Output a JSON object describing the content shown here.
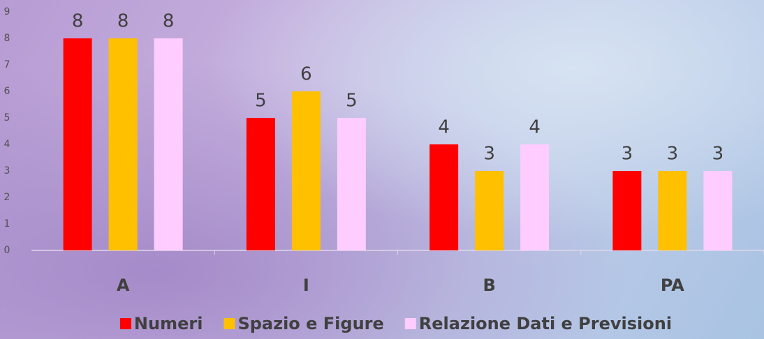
{
  "chart_data": {
    "type": "bar",
    "categories": [
      "A",
      "I",
      "B",
      "PA"
    ],
    "series": [
      {
        "name": "Numeri",
        "color": "#ff0000",
        "values": [
          8,
          5,
          4,
          3
        ]
      },
      {
        "name": "Spazio e Figure",
        "color": "#ffc000",
        "values": [
          8,
          6,
          3,
          3
        ]
      },
      {
        "name": "Relazione Dati e Previsioni",
        "color": "#ffccff",
        "values": [
          8,
          5,
          4,
          3
        ]
      }
    ],
    "ylim": [
      0,
      9
    ],
    "yticks": [
      0,
      1,
      2,
      3,
      4,
      5,
      6,
      7,
      8,
      9
    ],
    "legend": "bottom"
  }
}
